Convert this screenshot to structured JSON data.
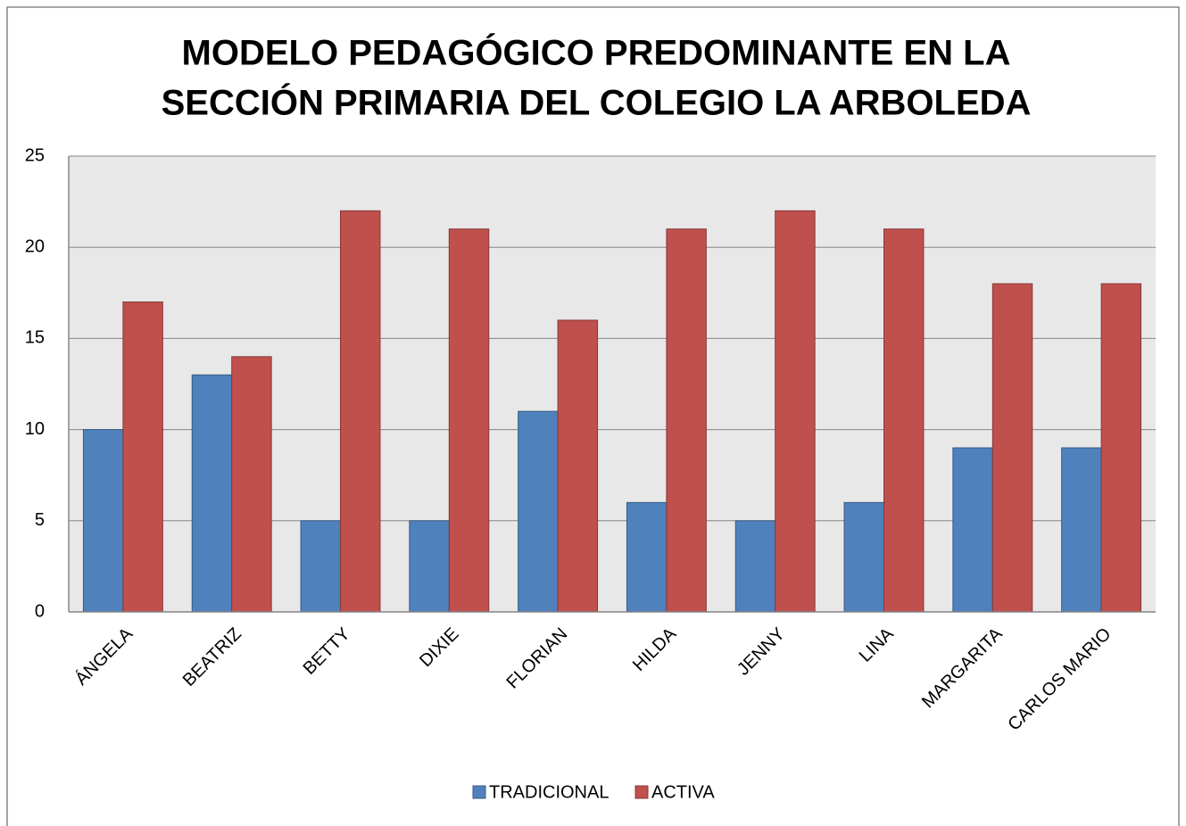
{
  "chart_data": {
    "type": "bar",
    "title": [
      "MODELO PEDAGÓGICO PREDOMINANTE EN LA",
      "SECCIÓN PRIMARIA DEL COLEGIO LA ARBOLEDA"
    ],
    "categories": [
      "ÁNGELA",
      "BEATRIZ",
      "BETTY",
      "DIXIE",
      "FLORIAN",
      "HILDA",
      "JENNY",
      "LINA",
      "MARGARITA",
      "CARLOS MARIO"
    ],
    "series": [
      {
        "name": "TRADICIONAL",
        "color": "#4f81bd",
        "values": [
          10,
          13,
          5,
          5,
          11,
          6,
          5,
          6,
          9,
          9
        ]
      },
      {
        "name": "ACTIVA",
        "color": "#c0504d",
        "values": [
          17,
          14,
          22,
          21,
          16,
          21,
          22,
          21,
          18,
          18
        ]
      }
    ],
    "ylim": [
      0,
      25
    ],
    "yticks": [
      0,
      5,
      10,
      15,
      20,
      25
    ],
    "grid": true,
    "legend": "bottom"
  }
}
